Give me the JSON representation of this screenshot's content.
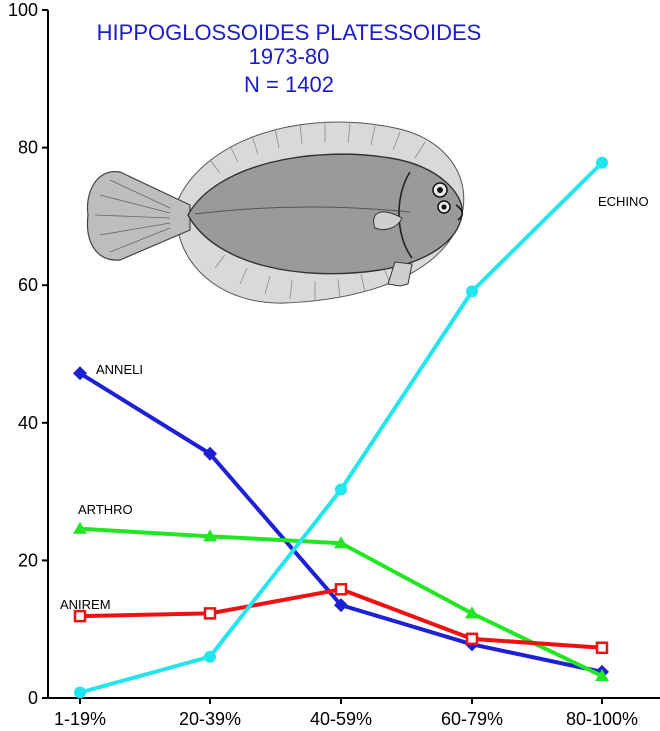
{
  "chart_data": {
    "type": "line",
    "title": [
      "HIPPOGLOSSOIDES PLATESSOIDES",
      "1973-80",
      "N = 1402"
    ],
    "xlabel": "",
    "ylabel": "",
    "categories": [
      "1-19%",
      "20-39%",
      "40-59%",
      "60-79%",
      "80-100%"
    ],
    "ylim": [
      0,
      100
    ],
    "yticks": [
      0,
      20,
      40,
      60,
      80,
      100
    ],
    "grid": false,
    "series": [
      {
        "name": "ANNELI",
        "color": "#1f1fd6",
        "marker": "diamond",
        "values": [
          47.2,
          35.5,
          13.5,
          7.8,
          3.8
        ]
      },
      {
        "name": "ARTHRO",
        "color": "#22e622",
        "marker": "triangle",
        "values": [
          24.6,
          23.5,
          22.5,
          12.3,
          3.2
        ]
      },
      {
        "name": "ANIREM",
        "color": "#ee1111",
        "marker": "square",
        "values": [
          11.9,
          12.3,
          15.8,
          8.6,
          7.3
        ]
      },
      {
        "name": "ECHINO",
        "color": "#22e5ee",
        "marker": "circle",
        "values": [
          0.8,
          6.0,
          30.3,
          59.1,
          77.8
        ]
      }
    ]
  },
  "illustration": {
    "subject": "flatfish-drawing"
  }
}
